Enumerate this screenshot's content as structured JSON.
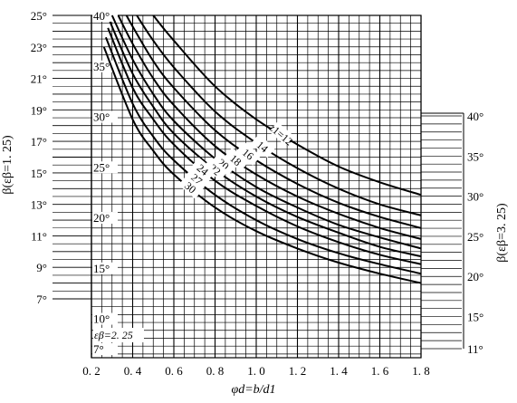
{
  "chart_data": {
    "type": "line",
    "xlabel": "φd=b/d1",
    "x_ticks": [
      "0. 2",
      "0. 4",
      "0. 6",
      "0. 8",
      "1. 0",
      "1. 2",
      "1. 4",
      "1. 6",
      "1. 8"
    ],
    "x_tick_values": [
      0.2,
      0.4,
      0.6,
      0.8,
      1.0,
      1.2,
      1.4,
      1.6,
      1.8
    ],
    "xlim": [
      0.2,
      1.8
    ],
    "left_axis": {
      "label": "β(εβ=1. 25)",
      "ticks": [
        "7°",
        "9°",
        "11°",
        "13°",
        "15°",
        "17°",
        "19°",
        "21°",
        "23°",
        "25°"
      ],
      "tick_values": [
        7,
        9,
        11,
        13,
        15,
        17,
        19,
        21,
        23,
        25
      ]
    },
    "inner_axis": {
      "label": "εβ=2. 25",
      "ticks": [
        "7°",
        "10°",
        "15°",
        "20°",
        "25°",
        "30°",
        "35°",
        "40°"
      ],
      "tick_values": [
        7,
        10,
        15,
        20,
        25,
        30,
        35,
        40
      ]
    },
    "right_axis": {
      "label": "β(εβ=3. 25)",
      "ticks": [
        "11°",
        "15°",
        "20°",
        "25°",
        "30°",
        "35°",
        "40°"
      ],
      "tick_values": [
        11,
        15,
        20,
        25,
        30,
        35,
        40
      ]
    },
    "series": [
      {
        "name": "z1=12",
        "x": [
          0.5,
          0.6,
          0.8,
          1.0,
          1.2,
          1.4,
          1.6,
          1.8
        ],
        "y": [
          25.0,
          23.4,
          20.5,
          18.4,
          16.8,
          15.4,
          14.4,
          13.6
        ]
      },
      {
        "name": "14",
        "x": [
          0.42,
          0.5,
          0.6,
          0.8,
          1.0,
          1.2,
          1.4,
          1.6,
          1.8
        ],
        "y": [
          25.0,
          23.4,
          21.7,
          18.9,
          16.9,
          15.3,
          14.0,
          13.0,
          12.3
        ]
      },
      {
        "name": "16",
        "x": [
          0.37,
          0.4,
          0.5,
          0.6,
          0.8,
          1.0,
          1.2,
          1.4,
          1.6,
          1.8
        ],
        "y": [
          25.0,
          24.3,
          22.1,
          20.4,
          17.7,
          15.8,
          14.3,
          13.1,
          12.2,
          11.5
        ]
      },
      {
        "name": "18",
        "x": [
          0.33,
          0.4,
          0.5,
          0.6,
          0.8,
          1.0,
          1.2,
          1.4,
          1.6,
          1.8
        ],
        "y": [
          25.0,
          23.2,
          21.0,
          19.3,
          16.7,
          14.9,
          13.5,
          12.4,
          11.5,
          10.8
        ]
      },
      {
        "name": "20",
        "x": [
          0.3,
          0.4,
          0.5,
          0.6,
          0.8,
          1.0,
          1.2,
          1.4,
          1.6,
          1.8
        ],
        "y": [
          25.0,
          22.2,
          20.0,
          18.3,
          15.9,
          14.1,
          12.8,
          11.7,
          10.9,
          10.2
        ]
      },
      {
        "name": "22",
        "x": [
          0.29,
          0.4,
          0.5,
          0.6,
          0.8,
          1.0,
          1.2,
          1.4,
          1.6,
          1.8
        ],
        "y": [
          24.6,
          21.3,
          19.2,
          17.5,
          15.2,
          13.5,
          12.2,
          11.2,
          10.3,
          9.7
        ]
      },
      {
        "name": "24",
        "x": [
          0.28,
          0.4,
          0.5,
          0.6,
          0.8,
          1.0,
          1.2,
          1.4,
          1.6,
          1.8
        ],
        "y": [
          24.2,
          20.4,
          18.4,
          16.8,
          14.5,
          12.9,
          11.6,
          10.6,
          9.8,
          9.2
        ]
      },
      {
        "name": "27",
        "x": [
          0.27,
          0.4,
          0.5,
          0.6,
          0.8,
          1.0,
          1.2,
          1.4,
          1.6,
          1.8
        ],
        "y": [
          23.6,
          19.4,
          17.3,
          15.8,
          13.6,
          12.0,
          10.8,
          9.9,
          9.2,
          8.6
        ]
      },
      {
        "name": "30",
        "x": [
          0.26,
          0.4,
          0.5,
          0.6,
          0.8,
          1.0,
          1.2,
          1.4,
          1.6,
          1.8
        ],
        "y": [
          23.0,
          18.4,
          16.4,
          14.9,
          12.8,
          11.3,
          10.2,
          9.3,
          8.6,
          8.0
        ]
      }
    ],
    "grid": true
  }
}
